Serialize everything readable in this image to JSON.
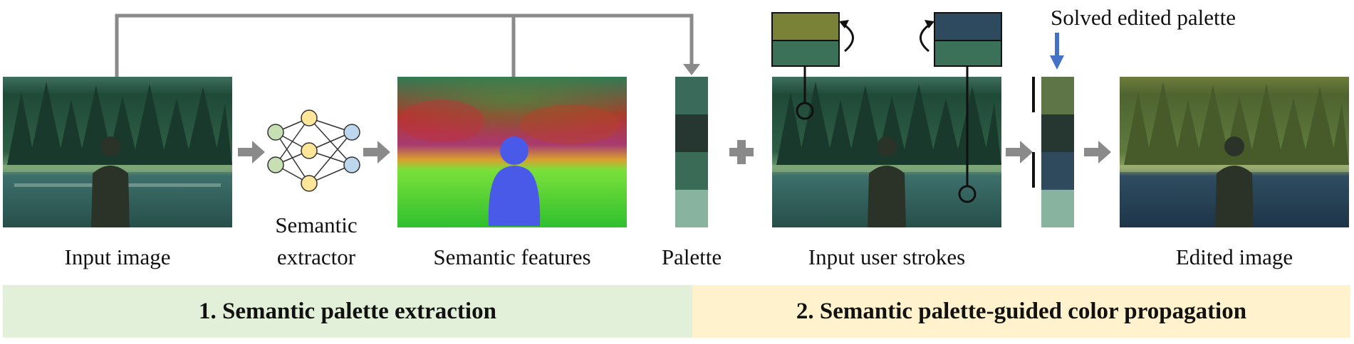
{
  "labels": {
    "input_image": "Input image",
    "extractor_line1": "Semantic",
    "extractor_line2": "extractor",
    "semantic_features": "Semantic features",
    "palette": "Palette",
    "user_strokes": "Input user strokes",
    "solved_palette": "Solved edited palette",
    "edited_image": "Edited image"
  },
  "stages": [
    {
      "label": "1. Semantic palette extraction",
      "color": "#e2efd9"
    },
    {
      "label": "2. Semantic palette-guided color propagation",
      "color": "#fff2cc"
    }
  ],
  "palette_colors": {
    "original": [
      "#3a6b5a",
      "#263630",
      "#3a6b57",
      "#88b49f"
    ],
    "solved": [
      "#5e7547",
      "#263630",
      "#2f4a5c",
      "#88b49f"
    ],
    "stroke_left": {
      "new": "#7a8238",
      "old": "#3b7159"
    },
    "stroke_right": {
      "new": "#2e4a5e",
      "old": "#3b7159"
    }
  },
  "colors": {
    "connector": "#8a8a8a",
    "highlight_arrow": "#4472c4",
    "node_green": "#c6e0b4",
    "node_yellow": "#ffe699",
    "node_blue": "#bdd7ee"
  }
}
